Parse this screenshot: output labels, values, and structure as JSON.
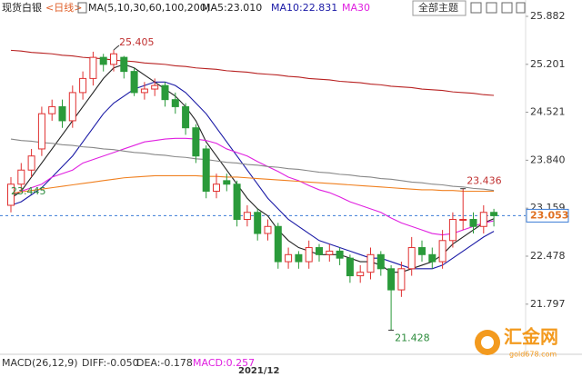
{
  "chart_data": {
    "type": "candlestick",
    "title": "现货白银",
    "subtitle": "<日线>",
    "legend": [
      {
        "text": "MA(5,10,30,60,100,200)",
        "color": "#222222"
      },
      {
        "text": "MA5:23.010",
        "color": "#222222"
      },
      {
        "text": "MA10:22.831",
        "color": "#1a1aa6"
      },
      {
        "text": "MA30",
        "color": "#e020e0"
      }
    ],
    "theme_button": "全部主题",
    "x_label": "2021/12",
    "macd": [
      "MACD(26,12,9)",
      "DIFF:-0.050",
      "DEA:-0.178",
      "MACD:0.257"
    ],
    "watermark": [
      "汇金网",
      "gold678.com"
    ],
    "ylim": [
      21.15,
      25.985
    ],
    "yticks": [
      25.882,
      25.201,
      24.521,
      {
        "value": 23.84,
        "label": "23.840"
      },
      23.159,
      22.478,
      21.797
    ],
    "last_price": 23.053,
    "left_label": 23.445,
    "up_color": "#e03030",
    "down_color": "#2a9a3a",
    "open": [
      23.2,
      23.5,
      23.7,
      24.0,
      24.5,
      24.6,
      24.4,
      24.8,
      25.0,
      25.3,
      25.2,
      25.3,
      25.1,
      24.8,
      24.85,
      24.9,
      24.7,
      24.6,
      24.3,
      24.0,
      23.4,
      23.55,
      23.5,
      23.0,
      23.1,
      22.8,
      22.9,
      22.4,
      22.5,
      22.4,
      22.6,
      22.5,
      22.55,
      22.45,
      22.2,
      22.25,
      22.5,
      22.3,
      22.0,
      22.3,
      22.6,
      22.5,
      22.4,
      22.7,
      23.0,
      23.0,
      22.9,
      23.1
    ],
    "high": [
      23.6,
      23.8,
      24.0,
      24.6,
      24.7,
      24.7,
      24.9,
      25.1,
      25.38,
      25.35,
      25.405,
      25.32,
      25.15,
      24.95,
      25.0,
      24.95,
      24.8,
      24.65,
      24.35,
      24.05,
      23.65,
      23.65,
      23.55,
      23.2,
      23.15,
      23.0,
      22.95,
      22.6,
      22.55,
      22.7,
      22.65,
      22.65,
      22.6,
      22.5,
      22.35,
      22.6,
      22.55,
      22.35,
      22.4,
      22.75,
      22.7,
      22.6,
      22.85,
      23.1,
      23.436,
      23.1,
      23.2,
      23.15
    ],
    "low": [
      23.1,
      23.4,
      23.6,
      23.9,
      24.4,
      24.3,
      24.3,
      24.7,
      24.9,
      25.1,
      25.1,
      25.0,
      24.75,
      24.7,
      24.75,
      24.6,
      24.5,
      24.2,
      23.8,
      23.3,
      23.3,
      23.4,
      22.9,
      22.9,
      22.7,
      22.7,
      22.3,
      22.3,
      22.3,
      22.3,
      22.4,
      22.4,
      22.35,
      22.1,
      22.1,
      22.15,
      22.2,
      21.428,
      21.9,
      22.2,
      22.4,
      22.3,
      22.3,
      22.6,
      22.85,
      22.8,
      22.8,
      22.9
    ],
    "close": [
      23.5,
      23.7,
      23.9,
      24.5,
      24.6,
      24.4,
      24.8,
      25.0,
      25.3,
      25.2,
      25.35,
      25.1,
      24.8,
      24.85,
      24.9,
      24.7,
      24.6,
      24.3,
      23.9,
      23.4,
      23.5,
      23.5,
      23.0,
      23.1,
      22.8,
      22.9,
      22.4,
      22.5,
      22.4,
      22.6,
      22.5,
      22.55,
      22.45,
      22.2,
      22.25,
      22.5,
      22.3,
      22.0,
      22.3,
      22.6,
      22.5,
      22.4,
      22.7,
      23.0,
      23.0,
      22.9,
      23.1,
      23.053
    ],
    "series": [
      {
        "color": "#222222",
        "values": [
          23.3,
          23.4,
          23.6,
          23.8,
          24.0,
          24.2,
          24.4,
          24.6,
          24.8,
          25.0,
          25.15,
          25.2,
          25.15,
          25.05,
          24.95,
          24.85,
          24.75,
          24.6,
          24.4,
          24.1,
          23.9,
          23.7,
          23.5,
          23.3,
          23.15,
          23.05,
          22.85,
          22.7,
          22.6,
          22.55,
          22.5,
          22.5,
          22.5,
          22.45,
          22.4,
          22.4,
          22.35,
          22.25,
          22.25,
          22.3,
          22.35,
          22.4,
          22.5,
          22.65,
          22.75,
          22.85,
          22.95,
          23.01
        ]
      },
      {
        "color": "#1a1aa6",
        "values": [
          23.2,
          23.25,
          23.35,
          23.45,
          23.6,
          23.75,
          23.9,
          24.1,
          24.3,
          24.5,
          24.65,
          24.75,
          24.85,
          24.9,
          24.95,
          24.95,
          24.9,
          24.8,
          24.65,
          24.5,
          24.3,
          24.1,
          23.9,
          23.7,
          23.5,
          23.3,
          23.15,
          23.0,
          22.9,
          22.8,
          22.7,
          22.65,
          22.6,
          22.55,
          22.5,
          22.45,
          22.45,
          22.4,
          22.35,
          22.3,
          22.3,
          22.3,
          22.35,
          22.45,
          22.55,
          22.65,
          22.75,
          22.831
        ]
      },
      {
        "color": "#e020e0",
        "values": [
          23.35,
          23.4,
          23.45,
          23.5,
          23.6,
          23.65,
          23.7,
          23.8,
          23.85,
          23.9,
          23.95,
          24.0,
          24.05,
          24.1,
          24.12,
          24.14,
          24.15,
          24.15,
          24.14,
          24.12,
          24.08,
          24.0,
          23.95,
          23.9,
          23.82,
          23.75,
          23.68,
          23.6,
          23.55,
          23.48,
          23.42,
          23.38,
          23.32,
          23.25,
          23.2,
          23.15,
          23.1,
          23.02,
          22.95,
          22.9,
          22.85,
          22.8,
          22.78,
          22.8,
          22.85,
          22.9,
          22.95,
          22.98
        ]
      },
      {
        "color": "#888888",
        "values": [
          24.14,
          24.12,
          24.11,
          24.09,
          24.08,
          24.06,
          24.05,
          24.03,
          24.02,
          24.0,
          23.99,
          23.97,
          23.95,
          23.94,
          23.92,
          23.91,
          23.89,
          23.88,
          23.86,
          23.85,
          23.83,
          23.81,
          23.8,
          23.78,
          23.77,
          23.75,
          23.74,
          23.72,
          23.71,
          23.69,
          23.67,
          23.66,
          23.64,
          23.63,
          23.61,
          23.6,
          23.58,
          23.57,
          23.55,
          23.53,
          23.52,
          23.5,
          23.49,
          23.47,
          23.46,
          23.44,
          23.43,
          23.41
        ]
      },
      {
        "color": "#f08020",
        "values": [
          23.37,
          23.39,
          23.41,
          23.43,
          23.45,
          23.47,
          23.49,
          23.51,
          23.53,
          23.55,
          23.57,
          23.59,
          23.6,
          23.61,
          23.62,
          23.62,
          23.62,
          23.62,
          23.62,
          23.61,
          23.61,
          23.6,
          23.6,
          23.59,
          23.58,
          23.57,
          23.56,
          23.55,
          23.54,
          23.53,
          23.52,
          23.51,
          23.5,
          23.49,
          23.48,
          23.47,
          23.46,
          23.45,
          23.44,
          23.43,
          23.42,
          23.42,
          23.41,
          23.41,
          23.4,
          23.4,
          23.4,
          23.4
        ]
      },
      {
        "color": "#b82222",
        "values": [
          25.4,
          25.39,
          25.37,
          25.36,
          25.35,
          25.33,
          25.32,
          25.3,
          25.29,
          25.28,
          25.26,
          25.25,
          25.24,
          25.22,
          25.21,
          25.2,
          25.18,
          25.17,
          25.15,
          25.14,
          25.13,
          25.11,
          25.1,
          25.09,
          25.07,
          25.06,
          25.05,
          25.03,
          25.02,
          25.0,
          24.99,
          24.98,
          24.96,
          24.95,
          24.94,
          24.92,
          24.91,
          24.89,
          24.88,
          24.87,
          24.85,
          24.84,
          24.83,
          24.81,
          24.8,
          24.79,
          24.77,
          24.76
        ]
      }
    ]
  }
}
